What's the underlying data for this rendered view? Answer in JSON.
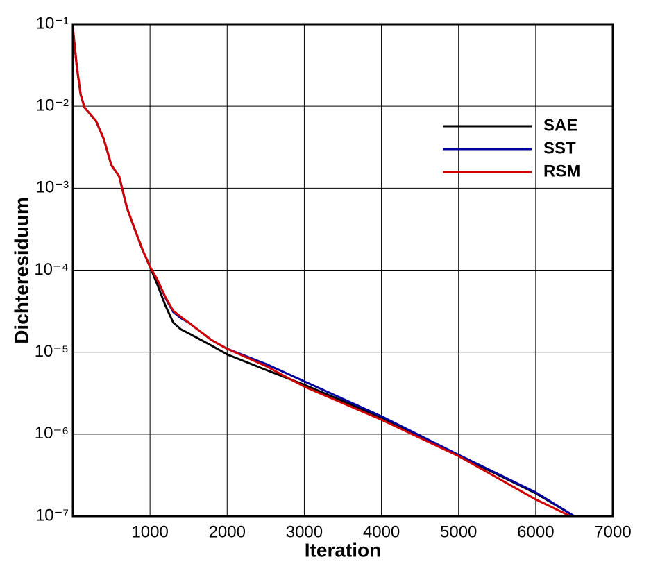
{
  "chart_data": {
    "type": "line",
    "xlabel": "Iteration",
    "ylabel": "Dichteresiduum",
    "xlim": [
      0,
      7000
    ],
    "xticks": [
      1000,
      2000,
      3000,
      4000,
      5000,
      6000,
      7000
    ],
    "ylim": [
      1e-07,
      0.1
    ],
    "ylog": true,
    "grid": true,
    "legend": "upper right",
    "yticks": [
      {
        "value": 1e-07,
        "label": "10⁻⁷"
      },
      {
        "value": 1e-06,
        "label": "10⁻⁶"
      },
      {
        "value": 1e-05,
        "label": "10⁻⁵"
      },
      {
        "value": 0.0001,
        "label": "10⁻⁴"
      },
      {
        "value": 0.001,
        "label": "10⁻³"
      },
      {
        "value": 0.01,
        "label": "10⁻²"
      },
      {
        "value": 0.1,
        "label": "10⁻¹"
      }
    ],
    "series": [
      {
        "name": "SAE",
        "color": "#000000",
        "x": [
          0,
          50,
          100,
          150,
          300,
          400,
          500,
          600,
          700,
          800,
          900,
          1000,
          1100,
          1200,
          1300,
          1400,
          1500,
          1800,
          2000,
          2500,
          3000,
          4000,
          5000,
          6000,
          6500
        ],
        "values": [
          0.09,
          0.031,
          0.014,
          0.0097,
          0.0066,
          0.004,
          0.0019,
          0.0014,
          0.00058,
          0.00032,
          0.00018,
          0.00011,
          6.5e-05,
          3.7e-05,
          2.3e-05,
          1.9e-05,
          1.7e-05,
          1.2e-05,
          9.4e-06,
          6.1e-06,
          4e-06,
          1.6e-06,
          5.5e-07,
          1.9e-07,
          1e-07
        ]
      },
      {
        "name": "SST",
        "color": "#0000a0",
        "x": [
          0,
          50,
          100,
          150,
          300,
          400,
          500,
          600,
          700,
          800,
          900,
          1000,
          1100,
          1200,
          1300,
          1400,
          1500,
          1800,
          2000,
          2500,
          3000,
          4000,
          5000,
          6000,
          6500
        ],
        "values": [
          0.09,
          0.031,
          0.014,
          0.0097,
          0.0066,
          0.004,
          0.0019,
          0.0014,
          0.00058,
          0.00032,
          0.00018,
          0.00011,
          7.5e-05,
          4.6e-05,
          3.1e-05,
          2.6e-05,
          2.3e-05,
          1.4e-05,
          1.1e-05,
          7.2e-06,
          4.4e-06,
          1.65e-06,
          5.6e-07,
          1.95e-07,
          1e-07
        ]
      },
      {
        "name": "RSM",
        "color": "#d00000",
        "x": [
          0,
          50,
          100,
          150,
          300,
          400,
          500,
          600,
          700,
          800,
          900,
          1000,
          1100,
          1200,
          1300,
          1400,
          1500,
          1800,
          2000,
          2500,
          3000,
          4000,
          5000,
          6000,
          6450
        ],
        "values": [
          0.09,
          0.031,
          0.014,
          0.0097,
          0.0066,
          0.004,
          0.0019,
          0.0014,
          0.00058,
          0.00032,
          0.00018,
          0.00011,
          7.5e-05,
          4.7e-05,
          3.2e-05,
          2.7e-05,
          2.3e-05,
          1.4e-05,
          1.1e-05,
          6.8e-06,
          3.8e-06,
          1.5e-06,
          5.4e-07,
          1.6e-07,
          1e-07
        ]
      }
    ]
  }
}
